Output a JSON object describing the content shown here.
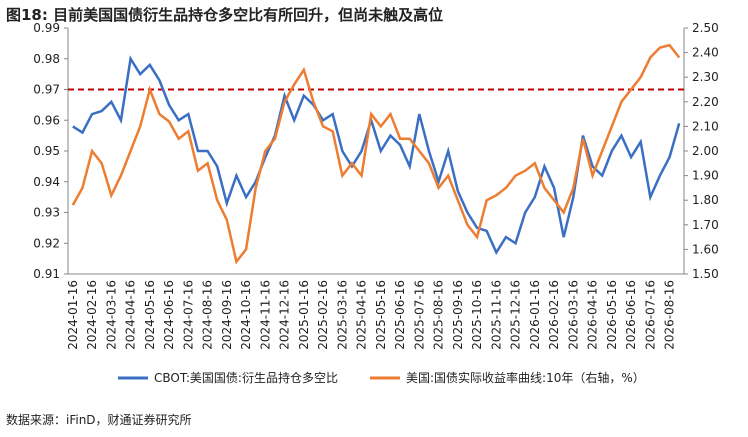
{
  "chart_data": {
    "type": "line",
    "title": "图18: 目前美国国债衍生品持仓多空比有所回升，但尚未触及高位",
    "source": "数据来源：iFinD，财通证券研究所",
    "categories": [
      "2024-01-16",
      null,
      "2024-02-16",
      null,
      "2024-03-16",
      null,
      "2024-04-16",
      null,
      "2024-05-16",
      null,
      "2024-06-16",
      null,
      "2024-07-16",
      null,
      "2024-08-16",
      null,
      "2024-09-16",
      null,
      "2024-10-16",
      null,
      "2024-11-16",
      null,
      "2024-12-16",
      null,
      "2025-01-16",
      null,
      "2025-02-16",
      null,
      "2025-03-16",
      null,
      "2025-04-16",
      null,
      "2025-05-16",
      null,
      "2025-06-16",
      null,
      "2025-07-16",
      null,
      "2025-08-16",
      null,
      "2025-09-16",
      null,
      "2025-10-16",
      null,
      "2025-11-16",
      null,
      "2025-12-16",
      null,
      "2026-01-16",
      null,
      "2026-02-16",
      null,
      "2026-03-16",
      null,
      "2026-04-16",
      null,
      "2026-05-16",
      null,
      "2026-06-16",
      null,
      "2026-07-16",
      null,
      "2026-08-16",
      null
    ],
    "series": [
      {
        "name": "CBOT:美国国债:衍生品持仓多空比",
        "color": "#3a6fc4",
        "axis": "y",
        "values": [
          0.958,
          0.956,
          0.962,
          0.963,
          0.966,
          0.96,
          0.98,
          0.975,
          0.978,
          0.973,
          0.965,
          0.96,
          0.962,
          0.95,
          0.95,
          0.945,
          0.933,
          0.942,
          0.935,
          0.94,
          0.948,
          0.955,
          0.968,
          0.96,
          0.968,
          0.965,
          0.96,
          0.962,
          0.95,
          0.945,
          0.95,
          0.96,
          0.95,
          0.955,
          0.952,
          0.945,
          0.962,
          0.95,
          0.94,
          0.95,
          0.937,
          0.93,
          0.925,
          0.924,
          0.917,
          0.922,
          0.92,
          0.93,
          0.935,
          0.945,
          0.938,
          0.922,
          0.935,
          0.955,
          0.945,
          0.942,
          0.95,
          0.955,
          0.948,
          0.953,
          0.935,
          0.942,
          0.948,
          0.959
        ]
      },
      {
        "name": "美国:国债实际收益率曲线:10年（右轴，%）",
        "color": "#ed7d31",
        "axis": "y2",
        "values": [
          1.78,
          1.85,
          2.0,
          1.95,
          1.82,
          1.9,
          2.0,
          2.1,
          2.25,
          2.15,
          2.12,
          2.05,
          2.08,
          1.92,
          1.95,
          1.8,
          1.72,
          1.55,
          1.6,
          1.85,
          2.0,
          2.05,
          2.2,
          2.27,
          2.33,
          2.2,
          2.1,
          2.08,
          1.9,
          1.95,
          1.9,
          2.15,
          2.1,
          2.15,
          2.05,
          2.05,
          2.0,
          1.95,
          1.85,
          1.9,
          1.8,
          1.7,
          1.65,
          1.8,
          1.82,
          1.85,
          1.9,
          1.92,
          1.95,
          1.85,
          1.8,
          1.75,
          1.85,
          2.05,
          1.9,
          2.0,
          2.1,
          2.2,
          2.25,
          2.3,
          2.38,
          2.42,
          2.43,
          2.38
        ]
      }
    ],
    "reference_line": {
      "value": 0.97,
      "color": "#c00000"
    },
    "ylim": [
      0.91,
      0.99
    ],
    "yticks": [
      0.91,
      0.92,
      0.93,
      0.94,
      0.95,
      0.96,
      0.97,
      0.98,
      0.99
    ],
    "y2lim": [
      1.5,
      2.5
    ],
    "y2ticks": [
      {
        "value": 1.5,
        "label": "1.50"
      },
      {
        "value": 1.6,
        "label": "1.60"
      },
      {
        "value": 1.7,
        "label": "1.70"
      },
      {
        "value": 1.8,
        "label": "1.80"
      },
      {
        "value": 1.9,
        "label": "1.90"
      },
      {
        "value": 2.0,
        "label": "2.00"
      },
      {
        "value": 2.1,
        "label": "2.10"
      },
      {
        "value": 2.2,
        "label": "2.20"
      },
      {
        "value": 2.3,
        "label": "2.30"
      },
      {
        "value": 2.4,
        "label": "2.40"
      },
      {
        "value": 2.5,
        "label": "2.50"
      }
    ],
    "grid": false,
    "legend": "bottom"
  }
}
